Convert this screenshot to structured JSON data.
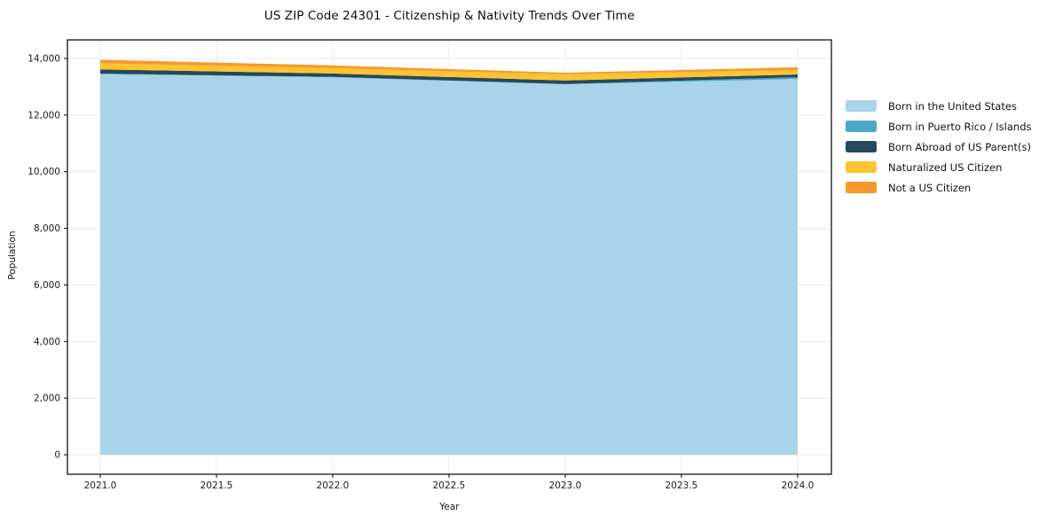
{
  "chart_data": {
    "type": "area",
    "stacked": true,
    "title": "US ZIP Code 24301 - Citizenship & Nativity Trends Over Time",
    "xlabel": "Year",
    "ylabel": "Population",
    "x": [
      2021,
      2022,
      2023,
      2024
    ],
    "series": [
      {
        "name": "Born in the United States",
        "color": "#A8D3E8",
        "values": [
          13450,
          13340,
          13090,
          13280
        ]
      },
      {
        "name": "Born in Puerto Rico / Islands",
        "color": "#4BA6C8",
        "values": [
          15,
          10,
          8,
          60
        ]
      },
      {
        "name": "Born Abroad of US Parent(s)",
        "color": "#26485C",
        "values": [
          150,
          120,
          125,
          95
        ]
      },
      {
        "name": "Naturalized US Citizen",
        "color": "#FDC430",
        "values": [
          220,
          190,
          215,
          160
        ]
      },
      {
        "name": "Not a US Citizen",
        "color": "#F8982B",
        "values": [
          120,
          95,
          60,
          95
        ]
      }
    ],
    "xlim": [
      2021,
      2024
    ],
    "ylim": [
      0,
      14000
    ],
    "x_tick_values": [
      2021.0,
      2021.5,
      2022.0,
      2022.5,
      2023.0,
      2023.5,
      2024.0
    ],
    "x_tick_labels": [
      "2021.0",
      "2021.5",
      "2022.0",
      "2022.5",
      "2023.0",
      "2023.5",
      "2024.0"
    ],
    "y_tick_values": [
      0,
      2000,
      4000,
      6000,
      8000,
      10000,
      12000,
      14000
    ],
    "y_tick_labels": [
      "0",
      "2,000",
      "4,000",
      "6,000",
      "8,000",
      "10,000",
      "12,000",
      "14,000"
    ],
    "grid": true,
    "legend_position": "right-outside",
    "colors": {
      "gridline": "#ebebeb",
      "spine": "#000000",
      "tick_label": "#1a1a1a",
      "background": "#ffffff"
    }
  }
}
